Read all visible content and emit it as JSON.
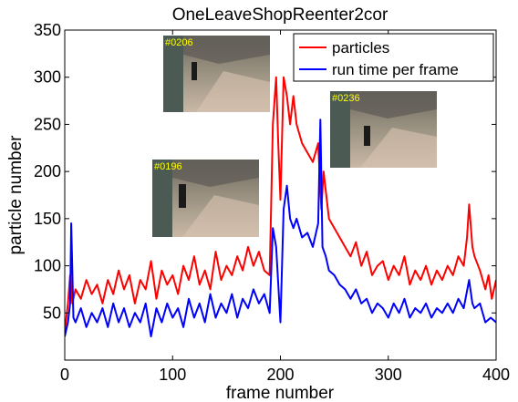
{
  "chart_data": {
    "type": "line",
    "title": "OneLeaveShopReenter2cor",
    "xlabel": "frame number",
    "ylabel": "particle number",
    "xlim": [
      0,
      400
    ],
    "ylim": [
      0,
      350
    ],
    "xticks": [
      0,
      100,
      200,
      300,
      400
    ],
    "yticks": [
      50,
      100,
      150,
      200,
      250,
      300,
      350
    ],
    "grid": false,
    "legend_position": "top-right",
    "series": [
      {
        "name": "particles",
        "color": "#ff0000",
        "points": [
          [
            0,
            30
          ],
          [
            3,
            60
          ],
          [
            5,
            90
          ],
          [
            7,
            60
          ],
          [
            10,
            75
          ],
          [
            15,
            65
          ],
          [
            20,
            85
          ],
          [
            25,
            70
          ],
          [
            30,
            80
          ],
          [
            35,
            60
          ],
          [
            40,
            85
          ],
          [
            45,
            70
          ],
          [
            50,
            95
          ],
          [
            55,
            75
          ],
          [
            60,
            90
          ],
          [
            65,
            60
          ],
          [
            70,
            85
          ],
          [
            75,
            75
          ],
          [
            80,
            105
          ],
          [
            85,
            65
          ],
          [
            90,
            95
          ],
          [
            95,
            80
          ],
          [
            100,
            90
          ],
          [
            105,
            70
          ],
          [
            110,
            100
          ],
          [
            115,
            85
          ],
          [
            120,
            110
          ],
          [
            125,
            80
          ],
          [
            130,
            95
          ],
          [
            135,
            75
          ],
          [
            140,
            115
          ],
          [
            145,
            85
          ],
          [
            150,
            100
          ],
          [
            155,
            90
          ],
          [
            160,
            110
          ],
          [
            165,
            95
          ],
          [
            170,
            120
          ],
          [
            175,
            100
          ],
          [
            180,
            115
          ],
          [
            185,
            95
          ],
          [
            190,
            90
          ],
          [
            193,
            250
          ],
          [
            196,
            300
          ],
          [
            198,
            230
          ],
          [
            200,
            170
          ],
          [
            203,
            300
          ],
          [
            206,
            280
          ],
          [
            209,
            250
          ],
          [
            212,
            280
          ],
          [
            215,
            250
          ],
          [
            220,
            230
          ],
          [
            225,
            220
          ],
          [
            230,
            210
          ],
          [
            235,
            230
          ],
          [
            238,
            160
          ],
          [
            240,
            200
          ],
          [
            245,
            150
          ],
          [
            250,
            140
          ],
          [
            255,
            130
          ],
          [
            260,
            120
          ],
          [
            265,
            110
          ],
          [
            270,
            125
          ],
          [
            275,
            100
          ],
          [
            280,
            115
          ],
          [
            285,
            90
          ],
          [
            290,
            100
          ],
          [
            295,
            105
          ],
          [
            300,
            85
          ],
          [
            305,
            100
          ],
          [
            310,
            90
          ],
          [
            315,
            110
          ],
          [
            320,
            80
          ],
          [
            325,
            95
          ],
          [
            330,
            85
          ],
          [
            335,
            100
          ],
          [
            340,
            80
          ],
          [
            345,
            95
          ],
          [
            350,
            85
          ],
          [
            355,
            100
          ],
          [
            360,
            90
          ],
          [
            365,
            110
          ],
          [
            370,
            100
          ],
          [
            373,
            130
          ],
          [
            375,
            165
          ],
          [
            378,
            120
          ],
          [
            380,
            110
          ],
          [
            385,
            95
          ],
          [
            390,
            75
          ],
          [
            393,
            90
          ],
          [
            396,
            65
          ],
          [
            400,
            85
          ]
        ]
      },
      {
        "name": "run time per frame",
        "color": "#0000ff",
        "points": [
          [
            0,
            25
          ],
          [
            3,
            40
          ],
          [
            5,
            60
          ],
          [
            6,
            145
          ],
          [
            8,
            45
          ],
          [
            10,
            40
          ],
          [
            15,
            55
          ],
          [
            20,
            35
          ],
          [
            25,
            50
          ],
          [
            30,
            40
          ],
          [
            35,
            55
          ],
          [
            40,
            35
          ],
          [
            45,
            60
          ],
          [
            50,
            40
          ],
          [
            55,
            55
          ],
          [
            60,
            35
          ],
          [
            65,
            50
          ],
          [
            70,
            40
          ],
          [
            75,
            60
          ],
          [
            80,
            25
          ],
          [
            85,
            55
          ],
          [
            90,
            40
          ],
          [
            95,
            60
          ],
          [
            100,
            45
          ],
          [
            105,
            55
          ],
          [
            110,
            35
          ],
          [
            115,
            65
          ],
          [
            120,
            45
          ],
          [
            125,
            60
          ],
          [
            130,
            40
          ],
          [
            135,
            70
          ],
          [
            140,
            45
          ],
          [
            145,
            60
          ],
          [
            150,
            50
          ],
          [
            155,
            70
          ],
          [
            160,
            45
          ],
          [
            165,
            65
          ],
          [
            170,
            55
          ],
          [
            175,
            75
          ],
          [
            180,
            60
          ],
          [
            185,
            70
          ],
          [
            190,
            50
          ],
          [
            193,
            140
          ],
          [
            196,
            120
          ],
          [
            200,
            40
          ],
          [
            203,
            160
          ],
          [
            206,
            185
          ],
          [
            209,
            150
          ],
          [
            212,
            140
          ],
          [
            215,
            150
          ],
          [
            220,
            130
          ],
          [
            225,
            135
          ],
          [
            230,
            120
          ],
          [
            235,
            145
          ],
          [
            237,
            255
          ],
          [
            239,
            120
          ],
          [
            242,
            110
          ],
          [
            245,
            95
          ],
          [
            250,
            90
          ],
          [
            255,
            80
          ],
          [
            260,
            75
          ],
          [
            265,
            65
          ],
          [
            270,
            75
          ],
          [
            275,
            60
          ],
          [
            280,
            65
          ],
          [
            285,
            50
          ],
          [
            290,
            60
          ],
          [
            295,
            55
          ],
          [
            300,
            45
          ],
          [
            305,
            60
          ],
          [
            310,
            50
          ],
          [
            315,
            65
          ],
          [
            320,
            45
          ],
          [
            325,
            55
          ],
          [
            330,
            50
          ],
          [
            335,
            60
          ],
          [
            340,
            45
          ],
          [
            345,
            55
          ],
          [
            350,
            50
          ],
          [
            355,
            60
          ],
          [
            360,
            50
          ],
          [
            365,
            65
          ],
          [
            370,
            55
          ],
          [
            375,
            85
          ],
          [
            378,
            60
          ],
          [
            380,
            55
          ],
          [
            385,
            60
          ],
          [
            390,
            40
          ],
          [
            395,
            45
          ],
          [
            400,
            40
          ]
        ]
      }
    ],
    "insets": [
      {
        "label": "#0206"
      },
      {
        "label": "#0236"
      },
      {
        "label": "#0196"
      }
    ]
  }
}
